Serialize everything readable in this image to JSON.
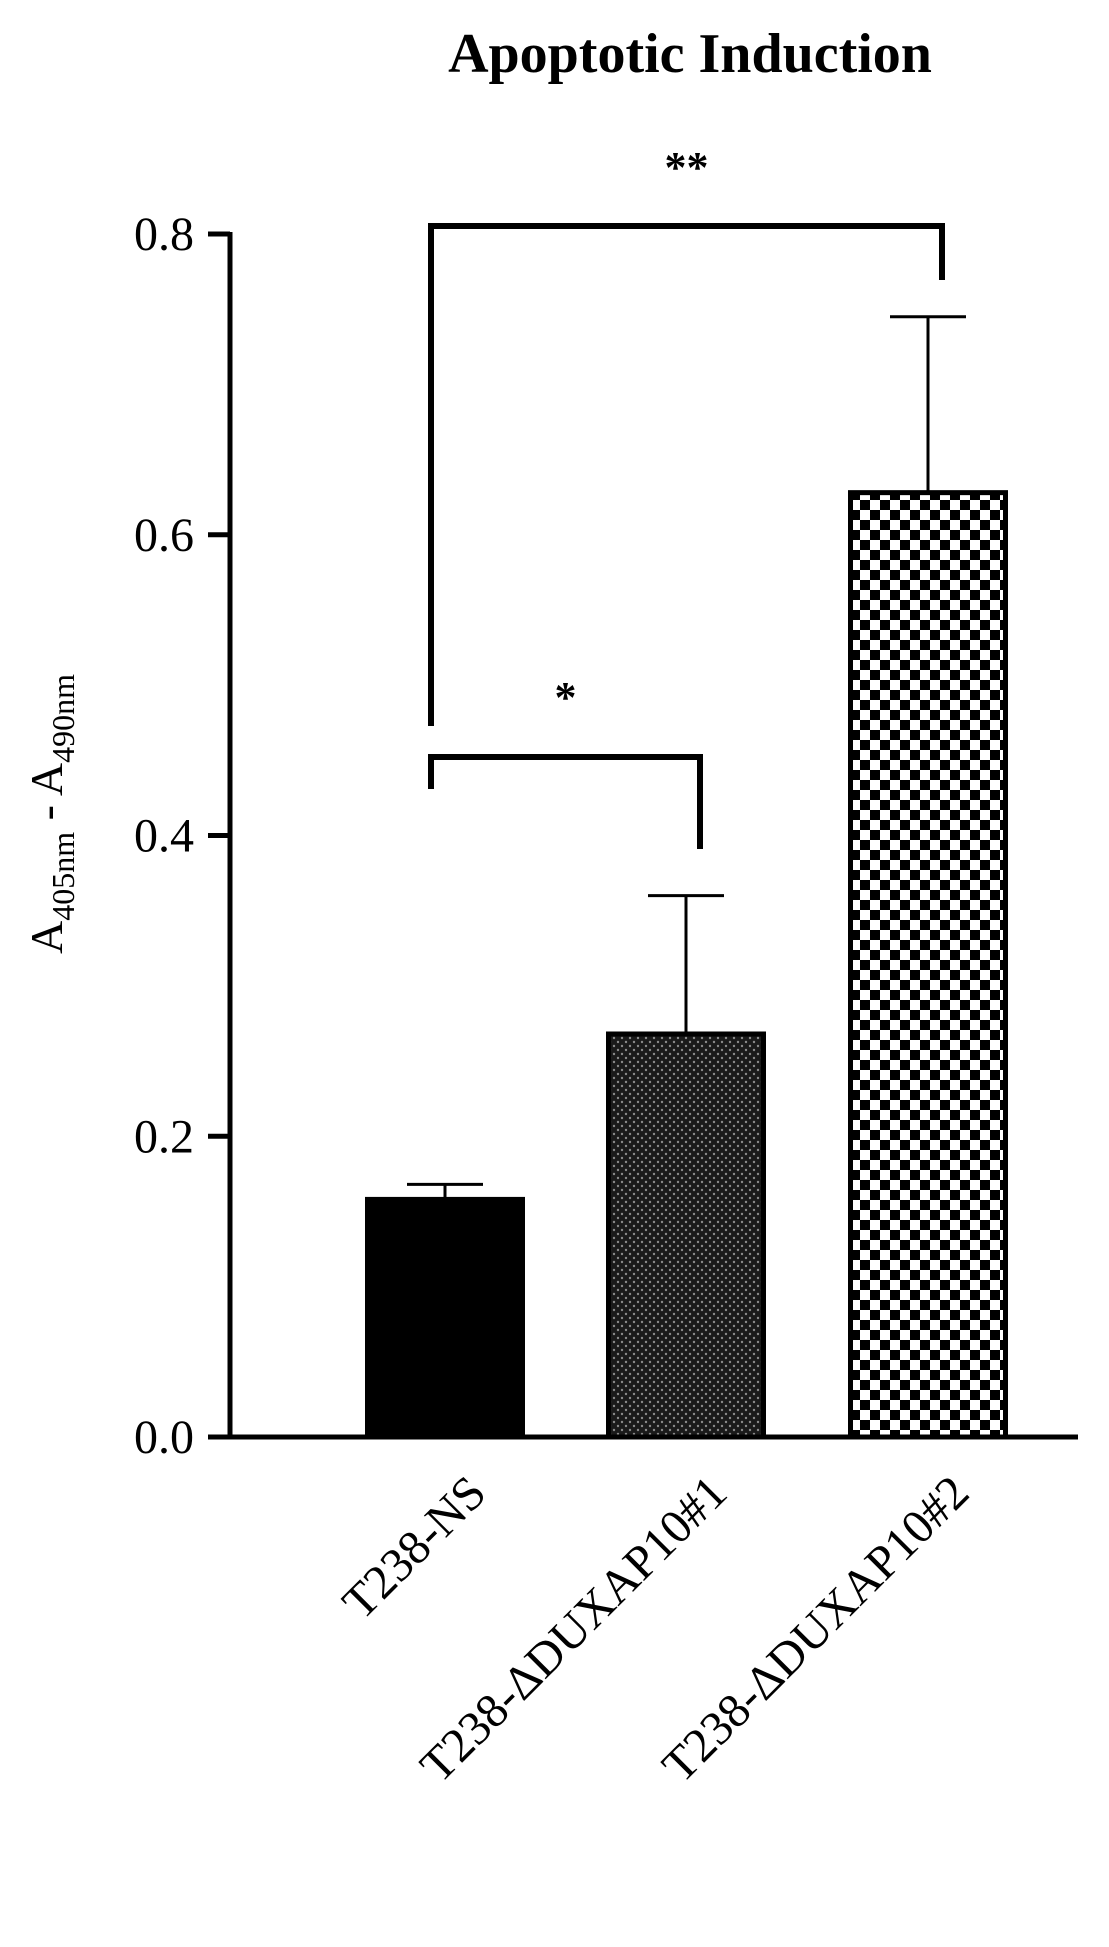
{
  "chart_data": {
    "type": "bar",
    "title": "Apoptotic Induction",
    "ylabel": {
      "main_a": "A",
      "sub_a": "405nm",
      "minus": " - ",
      "main_b": "A",
      "sub_b": "490nm"
    },
    "categories": [
      "T238-NS",
      "T238-ΔDUXAP10#1",
      "T238-ΔDUXAP10#2"
    ],
    "values": [
      0.158,
      0.268,
      0.628
    ],
    "error_upper": [
      0.168,
      0.36,
      0.745
    ],
    "patterns": [
      "solid",
      "dots",
      "checker"
    ],
    "ylim": [
      0,
      0.8
    ],
    "yticks": [
      "0.0",
      "0.2",
      "0.4",
      "0.6",
      "0.8"
    ],
    "significance": [
      {
        "from": 0,
        "to": 1,
        "label": "*"
      },
      {
        "from": 0,
        "to": 2,
        "label": "**"
      }
    ]
  }
}
